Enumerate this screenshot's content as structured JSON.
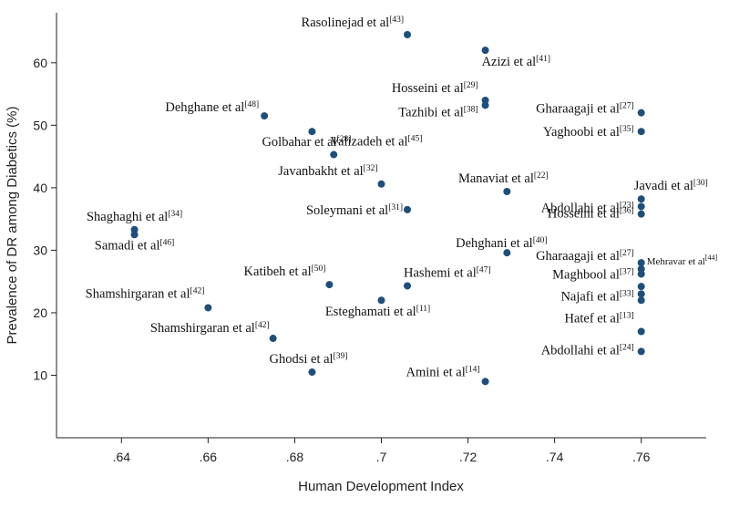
{
  "chart_data": {
    "type": "scatter",
    "xlabel": "Human Development Index",
    "ylabel": "Prevalence of  DR among Diabetics (%)",
    "xlim": [
      0.625,
      0.775
    ],
    "ylim": [
      0,
      68
    ],
    "x_ticks": [
      ".64",
      ".66",
      ".68",
      ".7",
      ".72",
      ".74",
      ".76"
    ],
    "y_ticks": [
      "10",
      "20",
      "30",
      "40",
      "50",
      "60"
    ],
    "grid": false,
    "point_color": "#1f4e79",
    "points": [
      {
        "x": 0.706,
        "y": 64.5,
        "label": "Rasolinejad et al",
        "ref": "[43]"
      },
      {
        "x": 0.724,
        "y": 62.0,
        "label": "Azizi et al",
        "ref": "[41]"
      },
      {
        "x": 0.724,
        "y": 54.0,
        "label": "Hosseini et al",
        "ref": "[29]"
      },
      {
        "x": 0.724,
        "y": 53.2,
        "label": "Tazhibi et al",
        "ref": "[38]"
      },
      {
        "x": 0.673,
        "y": 51.5,
        "label": "Dehghane et al",
        "ref": "[48]"
      },
      {
        "x": 0.684,
        "y": 49.0,
        "label": "Golbahar et al",
        "ref": "[28]"
      },
      {
        "x": 0.76,
        "y": 52.0,
        "label": "Gharaagaji et al",
        "ref": "[27]"
      },
      {
        "x": 0.76,
        "y": 49.0,
        "label": "Yaghoobi et al",
        "ref": "[35]"
      },
      {
        "x": 0.689,
        "y": 45.3,
        "label": "Valizadeh et al",
        "ref": "[45]"
      },
      {
        "x": 0.7,
        "y": 40.6,
        "label": "Javanbakht et al",
        "ref": "[32]"
      },
      {
        "x": 0.729,
        "y": 39.4,
        "label": "Manaviat et al",
        "ref": "[22]"
      },
      {
        "x": 0.76,
        "y": 38.2,
        "label": "Javadi et al",
        "ref": "[30]"
      },
      {
        "x": 0.76,
        "y": 37.0,
        "label": "Abdollahi et al",
        "ref": "[23]"
      },
      {
        "x": 0.706,
        "y": 36.5,
        "label": "Soleymani et al",
        "ref": "[31]"
      },
      {
        "x": 0.76,
        "y": 35.8,
        "label": "Hosseini et al",
        "ref": "[36]"
      },
      {
        "x": 0.643,
        "y": 33.3,
        "label": "Shaghaghi et al",
        "ref": "[34]"
      },
      {
        "x": 0.643,
        "y": 32.5,
        "label": "Samadi et al",
        "ref": "[46]"
      },
      {
        "x": 0.729,
        "y": 29.6,
        "label": "Dehghani et al",
        "ref": "[40]"
      },
      {
        "x": 0.76,
        "y": 28.0,
        "label": "Gharaagaji et al",
        "ref": "[27]"
      },
      {
        "x": 0.76,
        "y": 27.0,
        "label": "Mehravar et al",
        "ref": "[44]"
      },
      {
        "x": 0.76,
        "y": 26.2,
        "label": "Maghbool al",
        "ref": "[37]"
      },
      {
        "x": 0.76,
        "y": 24.2,
        "label": "",
        "ref": ""
      },
      {
        "x": 0.76,
        "y": 23.0,
        "label": "Najafi et al",
        "ref": "[33]"
      },
      {
        "x": 0.76,
        "y": 22.0,
        "label": "",
        "ref": ""
      },
      {
        "x": 0.688,
        "y": 24.5,
        "label": "Katibeh et al",
        "ref": "[50]"
      },
      {
        "x": 0.706,
        "y": 24.3,
        "label": "Hashemi et al",
        "ref": "[47]"
      },
      {
        "x": 0.7,
        "y": 22.0,
        "label": "Esteghamati et al",
        "ref": "[11]"
      },
      {
        "x": 0.66,
        "y": 20.8,
        "label": "Shamshirgaran et al",
        "ref": "[42]"
      },
      {
        "x": 0.675,
        "y": 15.9,
        "label": "Shamshirgaran et al",
        "ref": "[42]"
      },
      {
        "x": 0.76,
        "y": 17.0,
        "label": "Hatef et al",
        "ref": "[13]"
      },
      {
        "x": 0.76,
        "y": 13.8,
        "label": "Abdollahi et al",
        "ref": "[24]"
      },
      {
        "x": 0.684,
        "y": 10.5,
        "label": "Ghodsi et al",
        "ref": "[39]"
      },
      {
        "x": 0.724,
        "y": 9.0,
        "label": "Amini et al",
        "ref": "[14]"
      }
    ]
  }
}
